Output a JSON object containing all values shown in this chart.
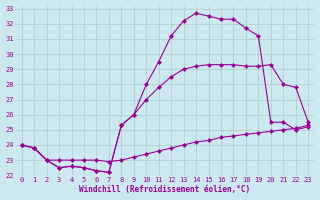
{
  "xlabel": "Windchill (Refroidissement éolien,°C)",
  "xlim": [
    -0.5,
    23.5
  ],
  "ylim": [
    22,
    33.2
  ],
  "yticks": [
    22,
    23,
    24,
    25,
    26,
    27,
    28,
    29,
    30,
    31,
    32,
    33
  ],
  "xticks": [
    0,
    1,
    2,
    3,
    4,
    5,
    6,
    7,
    8,
    9,
    10,
    11,
    12,
    13,
    14,
    15,
    16,
    17,
    18,
    19,
    20,
    21,
    22,
    23
  ],
  "bg_color": "#cce8f0",
  "grid_color": "#aacccc",
  "line_color": "#990099",
  "curve1_x": [
    0,
    1,
    2,
    3,
    4,
    5,
    6,
    7,
    8,
    9,
    10,
    11,
    12,
    13,
    14,
    15,
    16,
    17,
    18,
    19,
    20,
    21,
    22,
    23
  ],
  "curve1_y": [
    24.0,
    23.8,
    23.0,
    22.5,
    22.6,
    22.5,
    22.3,
    22.2,
    25.3,
    26.0,
    28.0,
    29.5,
    31.2,
    32.2,
    32.7,
    32.5,
    32.3,
    32.3,
    31.7,
    31.2,
    25.5,
    25.5,
    25.0,
    25.2
  ],
  "curve2_x": [
    0,
    1,
    2,
    3,
    4,
    5,
    6,
    7,
    8,
    9,
    10,
    11,
    12,
    13,
    14,
    15,
    16,
    17,
    18,
    19,
    20,
    21,
    22,
    23
  ],
  "curve2_y": [
    24.0,
    23.8,
    23.0,
    22.5,
    22.6,
    22.5,
    22.3,
    22.2,
    25.3,
    26.0,
    27.0,
    27.8,
    28.5,
    29.0,
    29.2,
    29.3,
    29.3,
    29.3,
    29.2,
    29.2,
    29.3,
    28.0,
    27.8,
    25.5
  ],
  "curve3_x": [
    0,
    1,
    2,
    3,
    4,
    5,
    6,
    7,
    8,
    9,
    10,
    11,
    12,
    13,
    14,
    15,
    16,
    17,
    18,
    19,
    20,
    21,
    22,
    23
  ],
  "curve3_y": [
    24.0,
    23.8,
    23.0,
    23.0,
    23.0,
    23.0,
    23.0,
    22.9,
    23.0,
    23.2,
    23.4,
    23.6,
    23.8,
    24.0,
    24.2,
    24.3,
    24.5,
    24.6,
    24.7,
    24.8,
    24.9,
    25.0,
    25.1,
    25.3
  ]
}
